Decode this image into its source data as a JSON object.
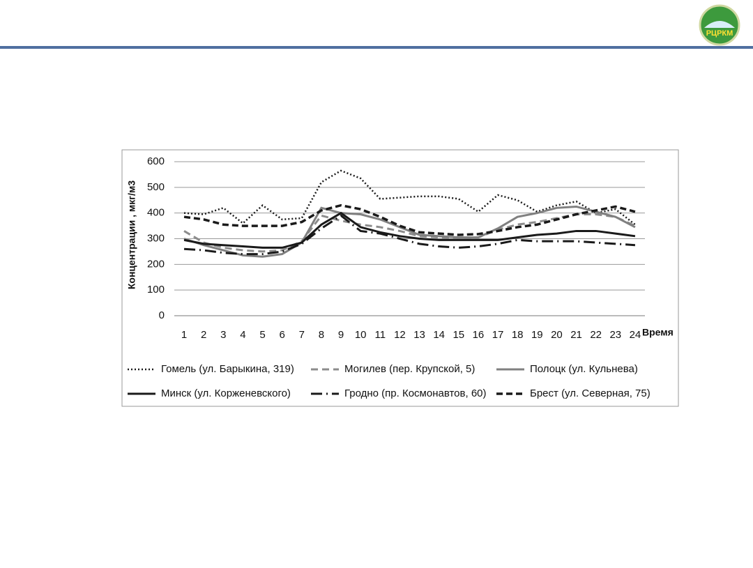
{
  "logo": {
    "text": "РЦРКМ"
  },
  "chart_data": {
    "type": "line",
    "y_label": "Концентрации , мкг/м3",
    "x_label": "Время",
    "categories": [
      1,
      2,
      3,
      4,
      5,
      6,
      7,
      8,
      9,
      10,
      11,
      12,
      13,
      14,
      15,
      16,
      17,
      18,
      19,
      20,
      21,
      22,
      23,
      24
    ],
    "ylim": [
      0,
      600
    ],
    "yticks": [
      0,
      100,
      200,
      300,
      400,
      500,
      600
    ],
    "grid": true,
    "series": [
      {
        "name": "Гомель (ул. Барыкина, 319)",
        "color": "#1a1a1a",
        "dash": "2,3",
        "width": 2.5,
        "values": [
          400,
          395,
          420,
          360,
          430,
          375,
          380,
          520,
          565,
          535,
          455,
          460,
          465,
          465,
          455,
          405,
          470,
          450,
          405,
          430,
          445,
          400,
          415,
          355
        ]
      },
      {
        "name": "Могилев (пер. Крупской, 5)",
        "color": "#8c8c8c",
        "dash": "10,6",
        "width": 3,
        "values": [
          330,
          285,
          265,
          255,
          250,
          255,
          290,
          390,
          370,
          355,
          345,
          330,
          310,
          305,
          300,
          305,
          335,
          355,
          365,
          380,
          395,
          395,
          385,
          350
        ]
      },
      {
        "name": "Полоцк (ул. Кульнева)",
        "color": "#808080",
        "dash": "",
        "width": 3,
        "values": [
          300,
          275,
          255,
          235,
          230,
          240,
          285,
          420,
          400,
          395,
          375,
          345,
          315,
          310,
          305,
          305,
          340,
          385,
          400,
          420,
          425,
          405,
          385,
          345
        ]
      },
      {
        "name": "Минск (ул. Корженевского)",
        "color": "#1a1a1a",
        "dash": "",
        "width": 3,
        "values": [
          295,
          280,
          275,
          270,
          265,
          265,
          285,
          355,
          400,
          345,
          325,
          310,
          300,
          295,
          295,
          295,
          295,
          305,
          315,
          320,
          330,
          330,
          320,
          310
        ]
      },
      {
        "name": "Гродно (пр. Космонавтов, 60)",
        "color": "#1a1a1a",
        "dash": "16,6,2,6",
        "width": 3,
        "values": [
          260,
          255,
          245,
          240,
          240,
          250,
          280,
          340,
          390,
          330,
          320,
          300,
          280,
          270,
          265,
          270,
          280,
          295,
          290,
          290,
          290,
          285,
          280,
          275
        ]
      },
      {
        "name": "Брест (ул. Северная, 75)",
        "color": "#1a1a1a",
        "dash": "9,5",
        "width": 3.5,
        "values": [
          385,
          375,
          355,
          350,
          350,
          350,
          365,
          410,
          430,
          415,
          385,
          350,
          325,
          320,
          315,
          318,
          330,
          345,
          355,
          375,
          395,
          410,
          425,
          405
        ]
      }
    ]
  }
}
